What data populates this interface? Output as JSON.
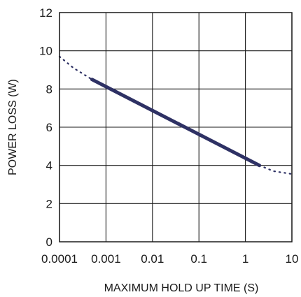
{
  "chart_data": {
    "type": "line",
    "title": "",
    "xlabel": "MAXIMUM HOLD UP TIME (S)",
    "ylabel": "POWER LOSS (W)",
    "x_scale": "log",
    "xlim": [
      0.0001,
      10
    ],
    "ylim": [
      0,
      12
    ],
    "grid": true,
    "x_ticks": [
      {
        "value": 0.0001,
        "label": "0.0001"
      },
      {
        "value": 0.001,
        "label": "0.001"
      },
      {
        "value": 0.01,
        "label": "0.01"
      },
      {
        "value": 0.1,
        "label": "0.1"
      },
      {
        "value": 1,
        "label": "1"
      },
      {
        "value": 10,
        "label": "10"
      }
    ],
    "y_ticks": [
      {
        "value": 0,
        "label": "0"
      },
      {
        "value": 2,
        "label": "2"
      },
      {
        "value": 4,
        "label": "4"
      },
      {
        "value": 6,
        "label": "6"
      },
      {
        "value": 8,
        "label": "8"
      },
      {
        "value": 10,
        "label": "10"
      },
      {
        "value": 12,
        "label": "12"
      }
    ],
    "series": [
      {
        "style": "dotted",
        "color": "#2e3164",
        "x": [
          0.0001,
          0.0002,
          0.0005
        ],
        "y": [
          9.7,
          9.1,
          8.5
        ]
      },
      {
        "style": "solid",
        "color": "#2e3164",
        "x": [
          0.0005,
          2.0
        ],
        "y": [
          8.5,
          4.0
        ]
      },
      {
        "style": "dotted",
        "color": "#2e3164",
        "x": [
          2.0,
          4.0,
          10.0
        ],
        "y": [
          4.0,
          3.7,
          3.55
        ]
      }
    ]
  }
}
